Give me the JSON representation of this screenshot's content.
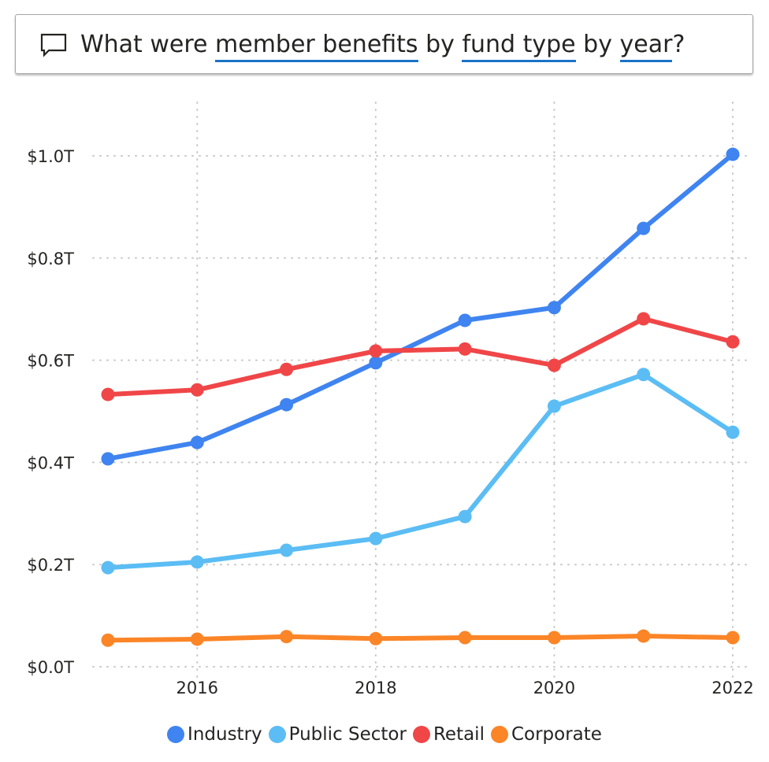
{
  "question": {
    "parts": [
      {
        "text": "What were ",
        "link": false
      },
      {
        "text": "member benefits",
        "link": true
      },
      {
        "text": " by ",
        "link": false
      },
      {
        "text": "fund type",
        "link": true
      },
      {
        "text": " by ",
        "link": false
      },
      {
        "text": "year",
        "link": true
      },
      {
        "text": "?",
        "link": false
      }
    ],
    "icon": "speech-bubble-icon",
    "accent": "#1a73c8"
  },
  "chart_data": {
    "type": "line",
    "x": [
      2015,
      2016,
      2017,
      2018,
      2019,
      2020,
      2021,
      2022
    ],
    "xticks": [
      "2016",
      "2018",
      "2020",
      "2022"
    ],
    "yticks": [
      "$0.0T",
      "$0.2T",
      "$0.4T",
      "$0.6T",
      "$0.8T",
      "$1.0T"
    ],
    "ylim": [
      0,
      1.0
    ],
    "yunit": "T",
    "grid": true,
    "legend": "bottom",
    "series": [
      {
        "name": "Industry",
        "color": "#3f84f0",
        "values": [
          0.407,
          0.439,
          0.513,
          0.595,
          0.678,
          0.703,
          0.858,
          1.003
        ]
      },
      {
        "name": "Public Sector",
        "color": "#5bbdf4",
        "values": [
          0.194,
          0.205,
          0.228,
          0.251,
          0.294,
          0.51,
          0.572,
          0.459
        ]
      },
      {
        "name": "Retail",
        "color": "#f04648",
        "values": [
          0.533,
          0.542,
          0.582,
          0.618,
          0.622,
          0.59,
          0.681,
          0.636
        ]
      },
      {
        "name": "Corporate",
        "color": "#fb8527",
        "values": [
          0.052,
          0.054,
          0.059,
          0.055,
          0.057,
          0.057,
          0.06,
          0.057
        ]
      }
    ]
  }
}
